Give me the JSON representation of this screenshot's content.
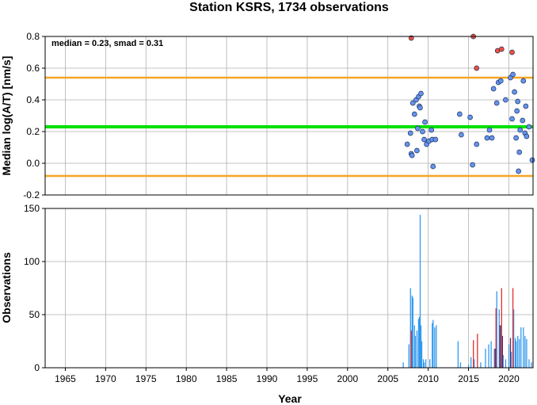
{
  "chart_data": [
    {
      "type": "scatter",
      "title": "Station KSRS, 1734 observations",
      "ylabel": "Median log(A/T) [nm/s]",
      "annotation": "median = 0.23, smad = 0.31",
      "xlim": [
        1962.5,
        2023.0
      ],
      "ylim": [
        -0.2,
        0.8
      ],
      "yticks": [
        -0.2,
        0.0,
        0.2,
        0.4,
        0.6,
        0.8
      ],
      "ytick_labels": [
        "-0.2",
        "0.0",
        "0.2",
        "0.4",
        "0.6",
        "0.8"
      ],
      "grid": true,
      "reference_lines": [
        {
          "y": 0.23,
          "color": "#00e000"
        },
        {
          "y": 0.54,
          "color": "#f5a623"
        },
        {
          "y": -0.08,
          "color": "#f5a623"
        }
      ],
      "series": [
        {
          "color": "#6495ed",
          "points": [
            [
              2007.4,
              0.12
            ],
            [
              2007.8,
              0.19
            ],
            [
              2007.9,
              0.06
            ],
            [
              2008.0,
              0.05
            ],
            [
              2008.1,
              0.38
            ],
            [
              2008.3,
              0.31
            ],
            [
              2008.5,
              0.4
            ],
            [
              2008.6,
              0.08
            ],
            [
              2008.7,
              0.22
            ],
            [
              2008.8,
              0.42
            ],
            [
              2008.9,
              0.36
            ],
            [
              2009.0,
              0.35
            ],
            [
              2009.1,
              0.44
            ],
            [
              2009.3,
              0.2
            ],
            [
              2009.5,
              0.15
            ],
            [
              2009.6,
              0.26
            ],
            [
              2009.8,
              0.12
            ],
            [
              2010.1,
              0.14
            ],
            [
              2010.4,
              0.21
            ],
            [
              2010.5,
              0.15
            ],
            [
              2010.6,
              -0.02
            ],
            [
              2010.9,
              0.15
            ],
            [
              2013.9,
              0.31
            ],
            [
              2014.1,
              0.18
            ],
            [
              2015.2,
              0.29
            ],
            [
              2015.5,
              -0.01
            ],
            [
              2016.0,
              0.12
            ],
            [
              2017.3,
              0.16
            ],
            [
              2017.6,
              0.21
            ],
            [
              2017.9,
              0.16
            ],
            [
              2018.1,
              0.47
            ],
            [
              2018.5,
              0.38
            ],
            [
              2018.7,
              0.51
            ],
            [
              2019.0,
              0.52
            ],
            [
              2019.6,
              0.4
            ],
            [
              2020.2,
              0.54
            ],
            [
              2020.4,
              0.28
            ],
            [
              2020.5,
              0.56
            ],
            [
              2020.7,
              0.45
            ],
            [
              2020.9,
              0.16
            ],
            [
              2021.0,
              0.33
            ],
            [
              2021.1,
              0.39
            ],
            [
              2021.2,
              -0.05
            ],
            [
              2021.3,
              0.07
            ],
            [
              2021.4,
              0.21
            ],
            [
              2021.7,
              0.27
            ],
            [
              2021.8,
              0.52
            ],
            [
              2022.0,
              0.19
            ],
            [
              2022.1,
              0.36
            ],
            [
              2022.2,
              0.17
            ],
            [
              2022.5,
              0.23
            ],
            [
              2022.9,
              0.02
            ]
          ]
        },
        {
          "color": "#f0503c",
          "points": [
            [
              2007.9,
              0.79
            ],
            [
              2015.6,
              0.8
            ],
            [
              2016.0,
              0.6
            ],
            [
              2018.6,
              0.71
            ],
            [
              2019.1,
              0.72
            ],
            [
              2020.4,
              0.7
            ]
          ]
        }
      ]
    },
    {
      "type": "bar",
      "xlabel": "Year",
      "ylabel": "Observations",
      "xlim": [
        1962.5,
        2023.0
      ],
      "ylim": [
        0,
        150
      ],
      "xticks": [
        1965,
        1970,
        1975,
        1980,
        1985,
        1990,
        1995,
        2000,
        2005,
        2010,
        2015,
        2020
      ],
      "xtick_labels": [
        "1965",
        "1970",
        "1975",
        "1980",
        "1985",
        "1990",
        "1995",
        "2000",
        "2005",
        "2010",
        "2015",
        "2020"
      ],
      "yticks": [
        0,
        50,
        100,
        150
      ],
      "ytick_labels": [
        "0",
        "50",
        "100",
        "150"
      ],
      "grid": true,
      "series": [
        {
          "color": "#3399ee",
          "values": [
            [
              2006.9,
              5
            ],
            [
              2007.6,
              22
            ],
            [
              2007.8,
              75
            ],
            [
              2008.0,
              68
            ],
            [
              2008.1,
              66
            ],
            [
              2008.3,
              40
            ],
            [
              2008.4,
              30
            ],
            [
              2008.6,
              35
            ],
            [
              2008.8,
              46
            ],
            [
              2008.9,
              48
            ],
            [
              2009.0,
              144
            ],
            [
              2009.1,
              40
            ],
            [
              2009.2,
              25
            ],
            [
              2009.4,
              8
            ],
            [
              2009.5,
              5
            ],
            [
              2009.7,
              8
            ],
            [
              2010.2,
              8
            ],
            [
              2010.5,
              42
            ],
            [
              2010.6,
              45
            ],
            [
              2010.8,
              38
            ],
            [
              2011.0,
              40
            ],
            [
              2013.7,
              25
            ],
            [
              2014.0,
              5
            ],
            [
              2015.0,
              3
            ],
            [
              2015.3,
              10
            ],
            [
              2015.7,
              8
            ],
            [
              2016.5,
              5
            ],
            [
              2017.1,
              18
            ],
            [
              2017.5,
              22
            ],
            [
              2017.8,
              25
            ],
            [
              2018.2,
              18
            ],
            [
              2018.5,
              72
            ],
            [
              2018.8,
              55
            ],
            [
              2019.0,
              40
            ],
            [
              2019.3,
              12
            ],
            [
              2019.6,
              8
            ],
            [
              2020.0,
              22
            ],
            [
              2020.3,
              15
            ],
            [
              2020.6,
              55
            ],
            [
              2020.8,
              28
            ],
            [
              2020.9,
              25
            ],
            [
              2021.1,
              30
            ],
            [
              2021.3,
              27
            ],
            [
              2021.5,
              38
            ],
            [
              2021.8,
              38
            ],
            [
              2022.0,
              30
            ],
            [
              2022.2,
              27
            ],
            [
              2022.5,
              8
            ],
            [
              2022.8,
              5
            ]
          ]
        },
        {
          "color": "#e03030",
          "values": [
            [
              2007.9,
              35
            ],
            [
              2015.6,
              26
            ],
            [
              2016.1,
              32
            ],
            [
              2018.4,
              56
            ],
            [
              2019.1,
              75
            ],
            [
              2020.5,
              75
            ]
          ]
        },
        {
          "color": "#702050",
          "values": [
            [
              2018.3,
              18
            ],
            [
              2018.9,
              40
            ],
            [
              2019.2,
              30
            ],
            [
              2020.2,
              28
            ]
          ]
        }
      ]
    }
  ]
}
